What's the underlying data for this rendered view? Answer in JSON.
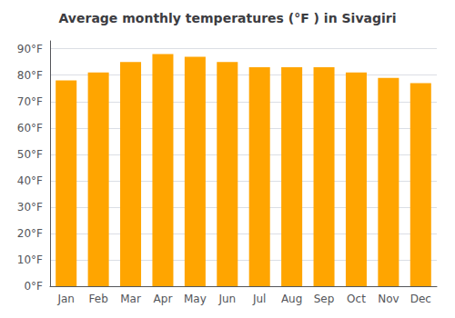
{
  "chart_data": {
    "type": "bar",
    "title": "Average monthly temperatures (°F ) in Sivagiri",
    "categories": [
      "Jan",
      "Feb",
      "Mar",
      "Apr",
      "May",
      "Jun",
      "Jul",
      "Aug",
      "Sep",
      "Oct",
      "Nov",
      "Dec"
    ],
    "values": [
      78,
      81,
      85,
      88,
      87,
      85,
      83,
      83,
      83,
      81,
      79,
      77
    ],
    "color": "#FFA500",
    "ylim": [
      0,
      93
    ],
    "yticks": [
      {
        "value": 0,
        "label": "0°F"
      },
      {
        "value": 10,
        "label": "10°F"
      },
      {
        "value": 20,
        "label": "20°F"
      },
      {
        "value": 30,
        "label": "30°F"
      },
      {
        "value": 40,
        "label": "40°F"
      },
      {
        "value": 50,
        "label": "50°F"
      },
      {
        "value": 60,
        "label": "60°F"
      },
      {
        "value": 70,
        "label": "70°F"
      },
      {
        "value": 80,
        "label": "80°F"
      },
      {
        "value": 90,
        "label": "90°F"
      }
    ],
    "grid": true
  }
}
